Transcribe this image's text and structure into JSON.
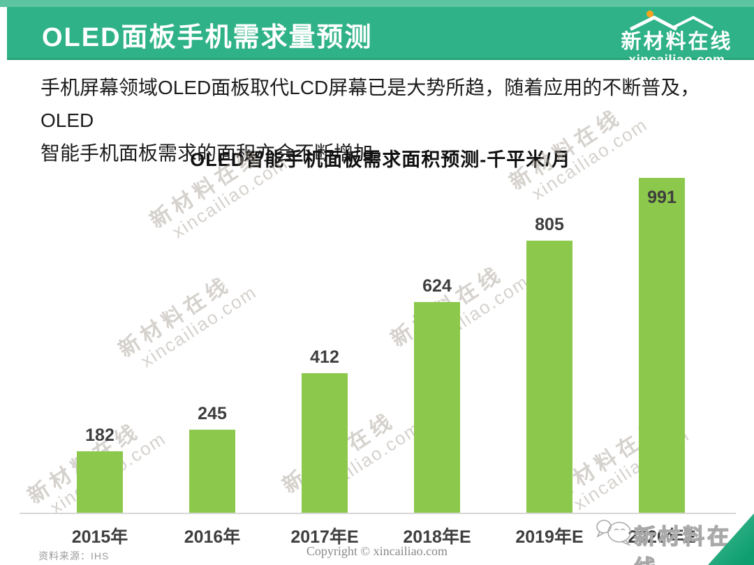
{
  "header": {
    "title": "OLED面板手机需求量预测",
    "logo": {
      "name": "新材料在线",
      "domain": "xincailiao.com",
      "dot_color": "#f6a41f"
    }
  },
  "intro": {
    "line1": "手机屏幕领域OLED面板取代LCD屏幕已是大势所趋，随着应用的不断普及，OLED",
    "line2": "智能手机面板需求的面积亦会不断增加。"
  },
  "chart_data": {
    "type": "bar",
    "title": "OLED智能手机面板需求面积预测-千平米/月",
    "categories": [
      "2015年",
      "2016年",
      "2017年E",
      "2018年E",
      "2019年E",
      "2020年E"
    ],
    "values": [
      182,
      245,
      412,
      624,
      805,
      991
    ],
    "unit": "千平米/月",
    "source": "IHS",
    "bar_color": "#8cc84b",
    "label_color": "#3e3e3e",
    "ylim": [
      0,
      1000
    ],
    "grid": false,
    "legend": false,
    "value_labels": true
  },
  "footer": {
    "source": "资料来源：IHS",
    "copyright": "Copyright © xincailiao.com",
    "corner_logo": "新材料在线"
  },
  "watermark": {
    "line1": "新材料在线",
    "line2": "xincailiao.com"
  },
  "theme": {
    "header_green": "#2fb287",
    "header_strip_green": "#5cc4a1",
    "bar_green": "#8cc84b",
    "triangle_green": "#0e9f70"
  }
}
